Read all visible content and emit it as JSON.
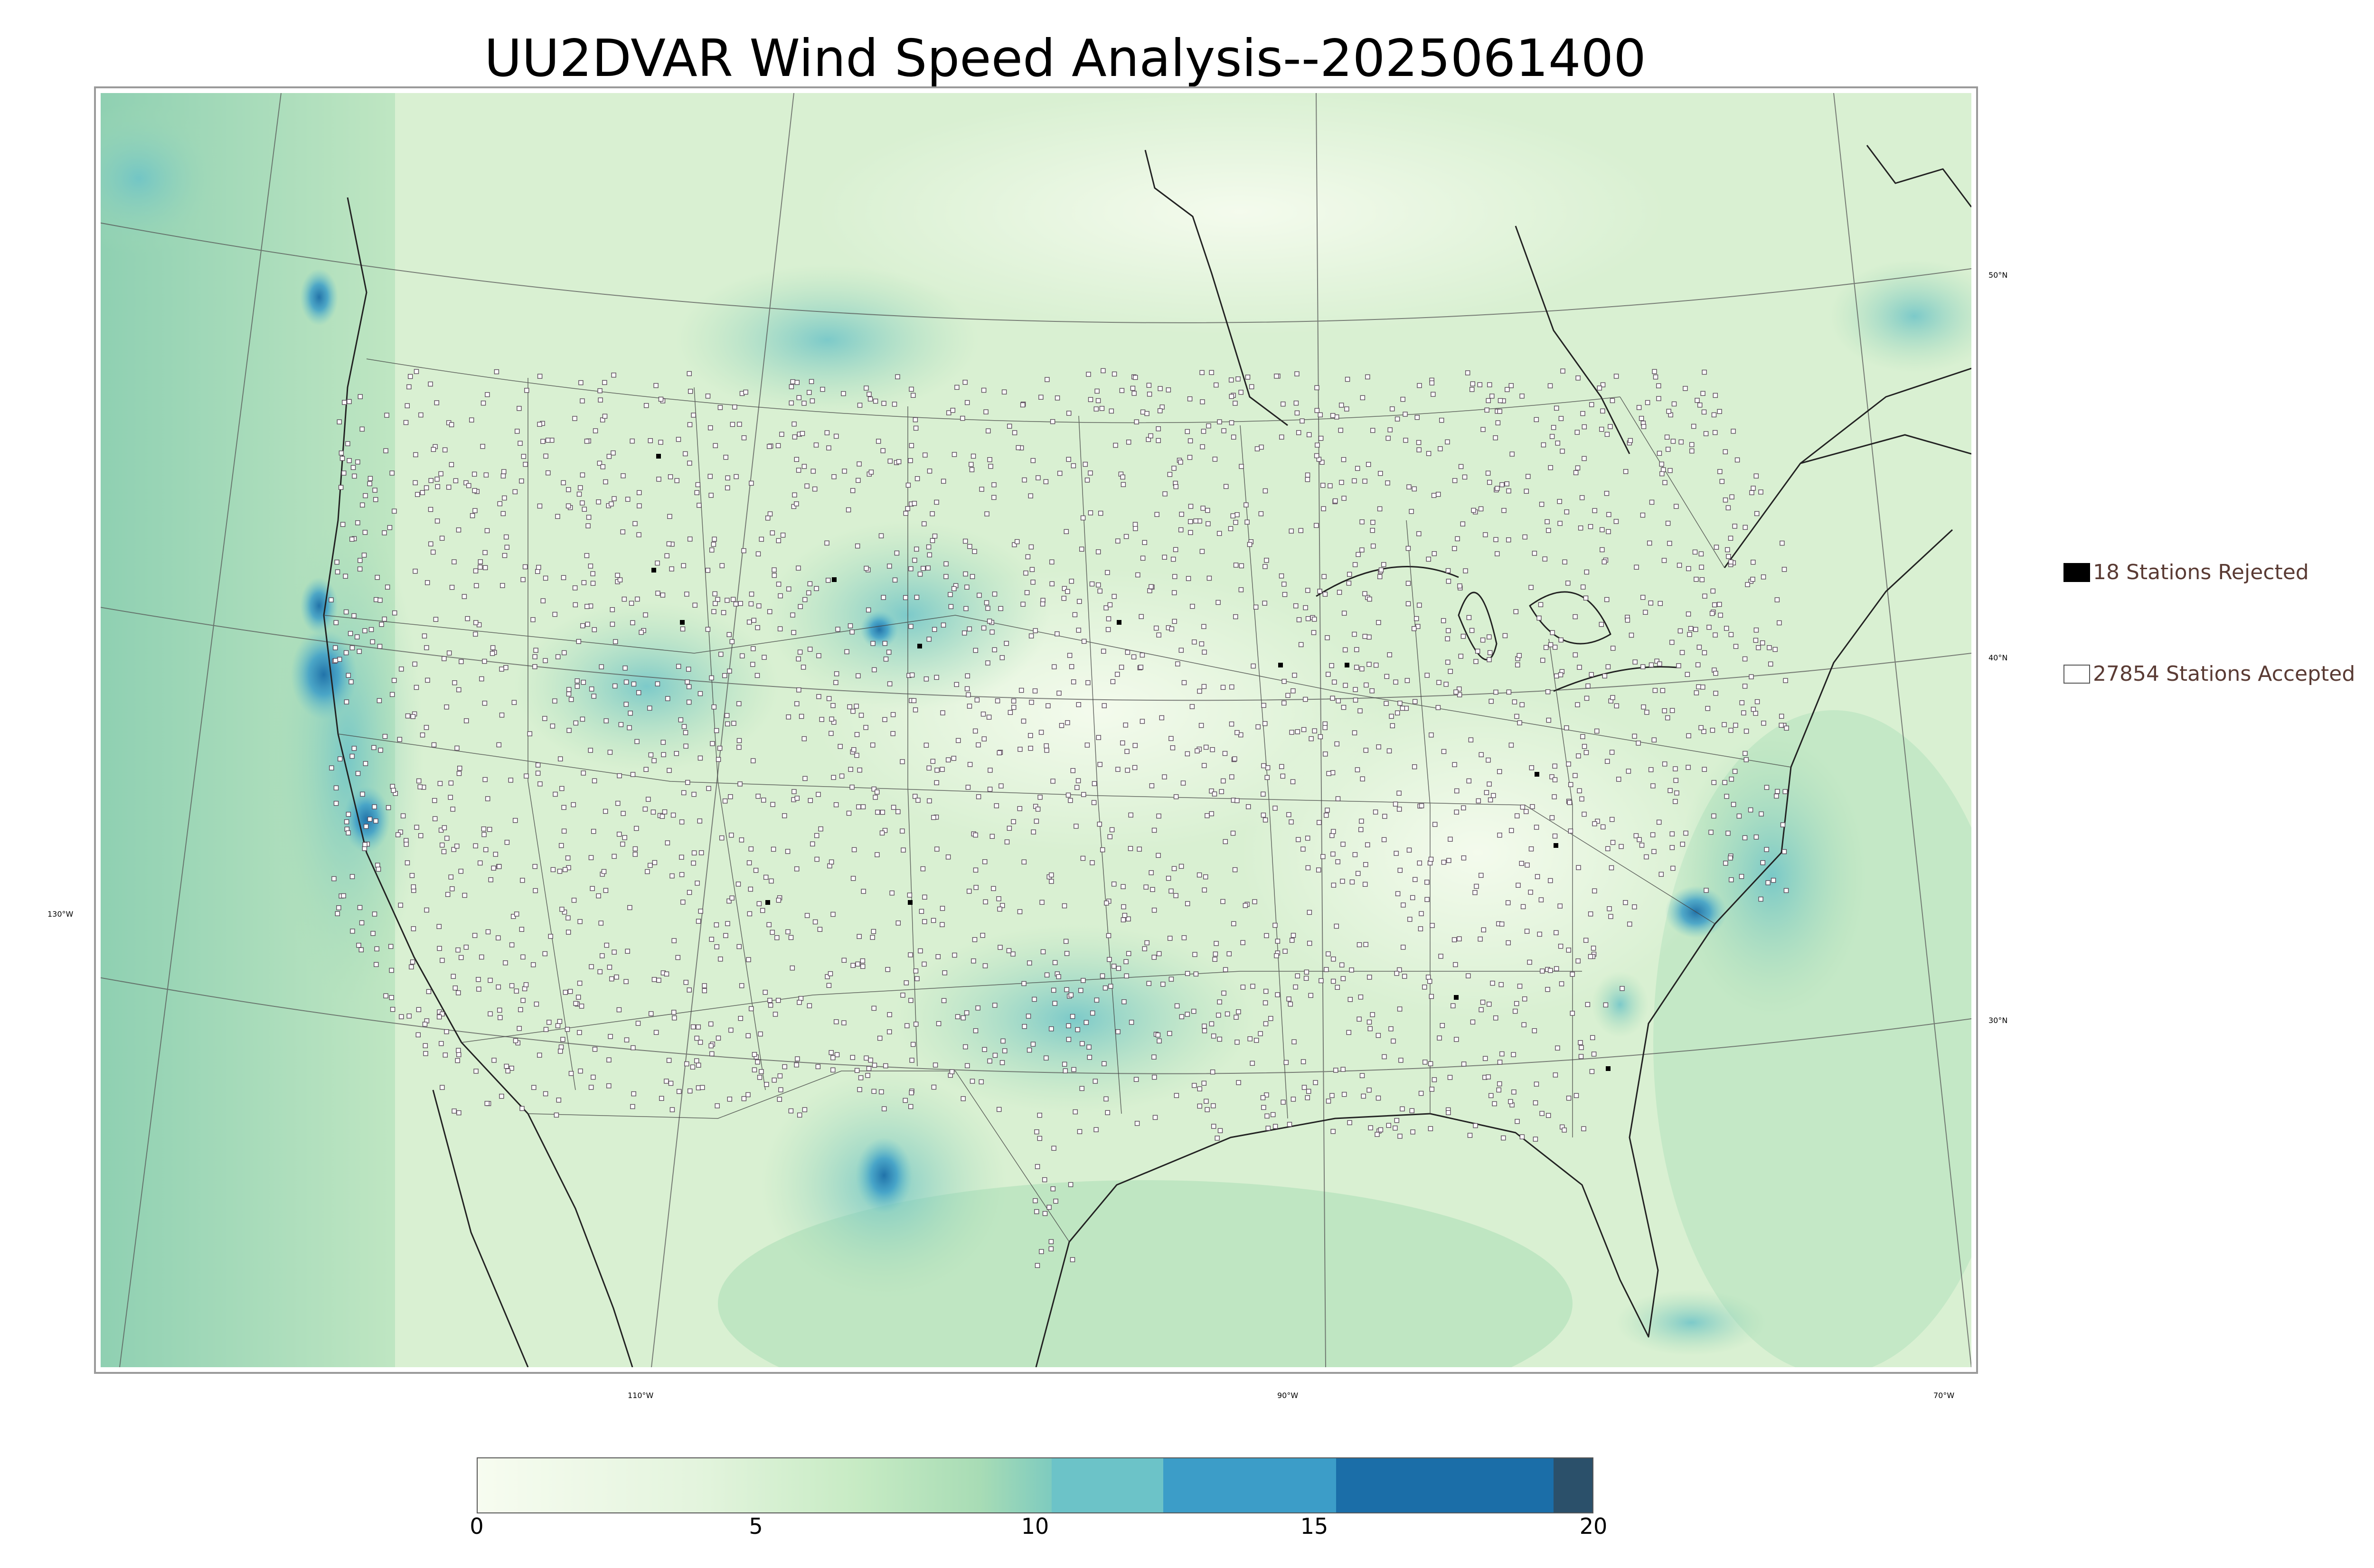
{
  "title": "UU2DVAR Wind Speed Analysis--2025061400",
  "legend": {
    "rejected_label": "18 Stations Rejected",
    "accepted_label": "27854 Stations Accepted"
  },
  "colorbar": {
    "ticks": [
      "0",
      "5",
      "10",
      "15",
      "20"
    ],
    "range": [
      0,
      20
    ],
    "colors": [
      "#f7fcf0",
      "#c7ebc4",
      "#7ecbbf",
      "#6cc3c8",
      "#3c9dc8",
      "#1b6ea8",
      "#2b506a"
    ]
  },
  "grid_labels": {
    "lat_50": "50°N",
    "lat_40": "40°N",
    "lat_30": "30°N",
    "lon_130": "130°W",
    "lon_110": "110°W",
    "lon_90": "90°W",
    "lon_70": "70°W"
  },
  "colors": {
    "land_base": "#dff2d8",
    "ocean_base": "#a9dcb6",
    "high_wind": "#1b6ea8",
    "station_edge": "#5a4a5a",
    "text_legend": "#5a3b34"
  }
}
